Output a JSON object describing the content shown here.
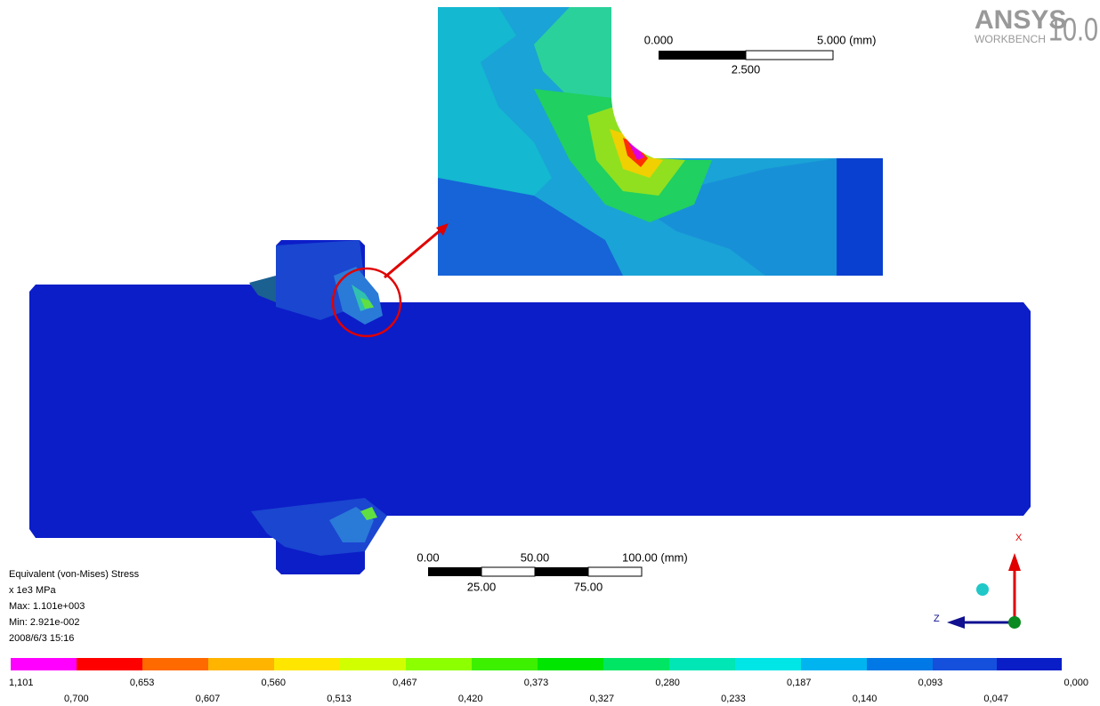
{
  "logo": {
    "brand": "ANSYS",
    "version": "10.0",
    "product": "WORKBENCH"
  },
  "detail_scale": {
    "start": "0.000",
    "end": "5.000 (mm)",
    "mid": "2.500"
  },
  "model_scale": {
    "labels_top": [
      "0.00",
      "50.00",
      "100.00 (mm)"
    ],
    "labels_bottom": [
      "25.00",
      "75.00"
    ]
  },
  "legend": {
    "title": "Equivalent (von-Mises) Stress",
    "unit": "x 1e3 MPa",
    "max": "Max: 1.101e+003",
    "min": "Min: 2.921e-002",
    "date": "2008/6/3 15:16",
    "labels_top": [
      "1,101",
      "0,653",
      "0,560",
      "0,467",
      "0,373",
      "0,280",
      "0,187",
      "0,093",
      "0,000"
    ],
    "labels_bottom": [
      "0,700",
      "0,607",
      "0,513",
      "0,420",
      "0,327",
      "0,233",
      "0,140",
      "0,047"
    ]
  },
  "triad": {
    "x": "X",
    "z": "Z"
  }
}
